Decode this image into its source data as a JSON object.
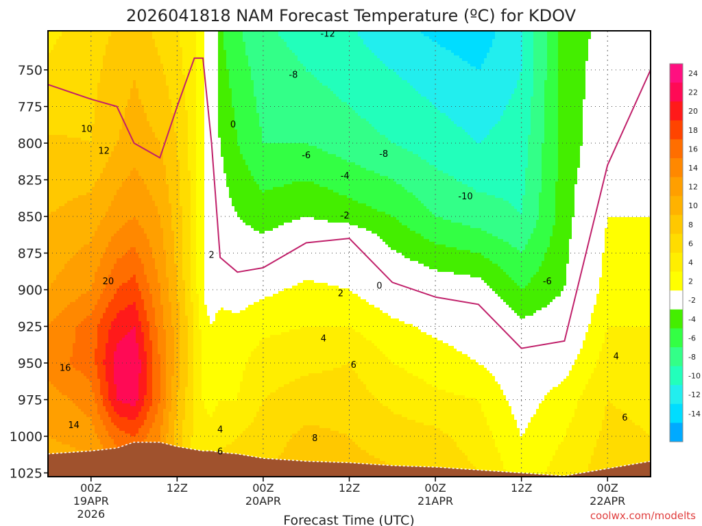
{
  "chart_data": {
    "type": "heatmap",
    "title": "2026041818 NAM Forecast Temperature (ºC) for KDOV",
    "xlabel": "Forecast Time (UTC)",
    "ylabel": "",
    "credit": "coolwx.com/modelts",
    "x_range_hours": [
      -5,
      65
    ],
    "ylim": [
      1030,
      712
    ],
    "y_ticks": [
      {
        "value": 750,
        "label": "750"
      },
      {
        "value": 775,
        "label": "775"
      },
      {
        "value": 800,
        "label": "800"
      },
      {
        "value": 825,
        "label": "825"
      },
      {
        "value": 850,
        "label": "850"
      },
      {
        "value": 875,
        "label": "875"
      },
      {
        "value": 900,
        "label": "900"
      },
      {
        "value": 925,
        "label": "925"
      },
      {
        "value": 950,
        "label": "950"
      },
      {
        "value": 975,
        "label": "975"
      },
      {
        "value": 1000,
        "label": "1000"
      },
      {
        "value": 1025,
        "label": "1025"
      }
    ],
    "x_ticks": [
      {
        "hour": 0,
        "lines": [
          "00Z",
          "19APR",
          "2026"
        ]
      },
      {
        "hour": 10,
        "lines": [
          "12Z"
        ]
      },
      {
        "hour": 20,
        "lines": [
          "00Z",
          "20APR"
        ]
      },
      {
        "hour": 30,
        "lines": [
          "12Z"
        ]
      },
      {
        "hour": 40,
        "lines": [
          "00Z",
          "21APR"
        ]
      },
      {
        "hour": 50,
        "lines": [
          "12Z"
        ]
      },
      {
        "hour": 60,
        "lines": [
          "00Z",
          "22APR"
        ]
      }
    ],
    "time_hours": [
      -5,
      0,
      3,
      5,
      8,
      10,
      12,
      13,
      14,
      15,
      17,
      20,
      25,
      30,
      35,
      40,
      45,
      50,
      55,
      60,
      65
    ],
    "freezing_level_hpa": [
      760,
      770,
      775,
      800,
      810,
      775,
      742,
      742,
      800,
      878,
      888,
      885,
      868,
      865,
      895,
      905,
      910,
      940,
      935,
      815,
      750
    ],
    "profiles": [
      {
        "name": "-5h",
        "levels": [
          712,
          780,
          850,
          900,
          925,
          950,
          975,
          1000,
          1015
        ],
        "values": [
          5,
          7.5,
          10,
          12,
          14,
          15,
          13,
          12,
          11
        ]
      },
      {
        "name": "0h",
        "levels": [
          712,
          800,
          850,
          900,
          925,
          950,
          975,
          1000,
          1012
        ],
        "values": [
          7,
          8,
          11,
          14,
          17,
          17,
          15,
          13,
          12
        ]
      },
      {
        "name": "3h",
        "levels": [
          712,
          800,
          850,
          900,
          925,
          950,
          975,
          1000,
          1008
        ],
        "values": [
          8,
          10,
          13,
          18,
          21,
          23,
          22,
          17,
          16
        ]
      },
      {
        "name": "5h",
        "levels": [
          712,
          800,
          850,
          900,
          925,
          950,
          975,
          1000,
          1005
        ],
        "values": [
          9,
          11,
          14,
          19,
          22,
          24,
          23,
          18,
          17
        ]
      },
      {
        "name": "8h",
        "levels": [
          712,
          800,
          850,
          900,
          925,
          950,
          975,
          1000,
          1005
        ],
        "values": [
          7,
          10,
          12,
          14,
          15,
          16,
          16,
          14,
          14
        ]
      },
      {
        "name": "10h",
        "levels": [
          712,
          800,
          850,
          900,
          925,
          950,
          975,
          1000,
          1007
        ],
        "values": [
          6,
          8,
          9,
          10,
          11,
          11,
          10,
          9,
          9
        ]
      },
      {
        "name": "12h",
        "levels": [
          712,
          800,
          850,
          900,
          925,
          950,
          975,
          1000,
          1009
        ],
        "values": [
          4,
          5,
          5,
          5,
          6,
          6,
          6,
          5.5,
          5.5
        ]
      },
      {
        "name": "13h",
        "levels": [
          712,
          780,
          850,
          900,
          925,
          950,
          975,
          1000,
          1009
        ],
        "values": [
          2,
          2,
          2,
          2,
          3,
          3.5,
          4,
          4.5,
          5
        ]
      },
      {
        "name": "14h",
        "levels": [
          712,
          742,
          800,
          850,
          900,
          925,
          950,
          975,
          1000,
          1010
        ],
        "values": [
          1,
          0,
          -1,
          -1,
          0.5,
          2,
          3,
          3.5,
          4.5,
          5
        ]
      },
      {
        "name": "15h",
        "levels": [
          712,
          760,
          800,
          850,
          878,
          900,
          925,
          950,
          975,
          1000,
          1011
        ],
        "values": [
          -4,
          -3,
          -2,
          -1,
          0,
          1,
          3,
          3.5,
          4,
          5.5,
          6
        ]
      },
      {
        "name": "17h",
        "levels": [
          712,
          750,
          800,
          850,
          888,
          900,
          925,
          950,
          975,
          1000,
          1012
        ],
        "values": [
          -6,
          -5,
          -4,
          -2,
          0,
          1,
          2.5,
          3.5,
          4,
          6,
          6.5
        ]
      },
      {
        "name": "20h",
        "levels": [
          712,
          750,
          800,
          850,
          885,
          900,
          925,
          950,
          975,
          1000,
          1015
        ],
        "values": [
          -8,
          -7,
          -6,
          -3,
          0,
          1.5,
          3.5,
          5,
          6,
          7,
          7.5
        ]
      },
      {
        "name": "25h",
        "levels": [
          712,
          750,
          800,
          850,
          868,
          900,
          925,
          950,
          975,
          1000,
          1017
        ],
        "values": [
          -9,
          -8,
          -6,
          -2,
          0,
          2.5,
          4,
          5.5,
          7,
          8.5,
          9
        ]
      },
      {
        "name": "30h",
        "levels": [
          712,
          750,
          800,
          850,
          865,
          900,
          925,
          950,
          975,
          1000,
          1018
        ],
        "values": [
          -10,
          -9,
          -7,
          -3,
          0,
          2,
          4,
          6,
          7,
          8,
          8.5
        ]
      },
      {
        "name": "35h",
        "levels": [
          712,
          750,
          800,
          850,
          895,
          925,
          950,
          975,
          1000,
          1020
        ],
        "values": [
          -12,
          -10,
          -8,
          -4,
          0,
          2.5,
          4,
          5.5,
          7,
          8
        ]
      },
      {
        "name": "40h",
        "levels": [
          712,
          750,
          800,
          850,
          905,
          925,
          950,
          975,
          1000,
          1022
        ],
        "values": [
          -13,
          -11,
          -9,
          -6,
          0,
          1.5,
          3,
          4.5,
          6.5,
          7.5
        ]
      },
      {
        "name": "45h",
        "levels": [
          712,
          750,
          800,
          850,
          900,
          910,
          950,
          975,
          1000,
          1025
        ],
        "values": [
          -14,
          -12,
          -10,
          -7,
          -1,
          0,
          2,
          4,
          5,
          6
        ]
      },
      {
        "name": "50h",
        "levels": [
          712,
          750,
          800,
          850,
          900,
          940,
          975,
          1000,
          1030
        ],
        "values": [
          -10,
          -10,
          -9,
          -8,
          -4,
          0,
          1,
          2,
          3
        ]
      },
      {
        "name": "55h",
        "levels": [
          712,
          750,
          800,
          850,
          900,
          935,
          975,
          1000,
          1027
        ],
        "values": [
          -3,
          -3,
          -3,
          -3,
          -2,
          0,
          3,
          4,
          5
        ]
      },
      {
        "name": "60h",
        "levels": [
          712,
          750,
          800,
          815,
          850,
          900,
          925,
          950,
          975,
          1000,
          1022
        ],
        "values": [
          -1.5,
          -1,
          -0.5,
          0,
          2,
          3,
          4,
          5,
          6,
          6.5,
          7
        ]
      },
      {
        "name": "65h",
        "levels": [
          712,
          750,
          800,
          850,
          900,
          950,
          975,
          1000,
          1018
        ],
        "values": [
          0,
          0,
          1,
          2,
          3,
          5,
          5.5,
          6,
          6.5
        ]
      }
    ],
    "ground_hpa": [
      1012,
      1010,
      1008,
      1004,
      1004,
      1007,
      1009,
      1010,
      1010,
      1011,
      1012,
      1015,
      1017,
      1018,
      1020,
      1021,
      1023,
      1025,
      1027,
      1022,
      1017
    ],
    "contour_labels": [
      {
        "text": "-12",
        "hour": 27.5,
        "hpa": 725
      },
      {
        "text": "-8",
        "hour": 23.5,
        "hpa": 753
      },
      {
        "text": "0",
        "hour": 16.5,
        "hpa": 787
      },
      {
        "text": "10",
        "hour": -0.5,
        "hpa": 790
      },
      {
        "text": "-6",
        "hour": 25,
        "hpa": 808
      },
      {
        "text": "-8",
        "hour": 34,
        "hpa": 807
      },
      {
        "text": "12",
        "hour": 1.5,
        "hpa": 805
      },
      {
        "text": "-4",
        "hour": 29.5,
        "hpa": 822
      },
      {
        "text": "-10",
        "hour": 43.5,
        "hpa": 836
      },
      {
        "text": "-2",
        "hour": 29.5,
        "hpa": 849
      },
      {
        "text": "2",
        "hour": 14,
        "hpa": 876
      },
      {
        "text": "-6",
        "hour": 53,
        "hpa": 894
      },
      {
        "text": "20",
        "hour": 2,
        "hpa": 894
      },
      {
        "text": "0",
        "hour": 33.5,
        "hpa": 897
      },
      {
        "text": "2",
        "hour": 29,
        "hpa": 902
      },
      {
        "text": "4",
        "hour": 27,
        "hpa": 933
      },
      {
        "text": "6",
        "hour": 30.5,
        "hpa": 951
      },
      {
        "text": "4",
        "hour": 61,
        "hpa": 945
      },
      {
        "text": "16",
        "hour": -3,
        "hpa": 953
      },
      {
        "text": "6",
        "hour": 62,
        "hpa": 987
      },
      {
        "text": "14",
        "hour": -2,
        "hpa": 992
      },
      {
        "text": "4",
        "hour": 15,
        "hpa": 995
      },
      {
        "text": "8",
        "hour": 26,
        "hpa": 1001
      },
      {
        "text": "6",
        "hour": 15,
        "hpa": 1010
      }
    ],
    "color_levels": [
      {
        "label": "24",
        "color": "#ff1080"
      },
      {
        "label": "22",
        "color": "#ff0a55"
      },
      {
        "label": "20",
        "color": "#ff1a1a"
      },
      {
        "label": "18",
        "color": "#ff4400"
      },
      {
        "label": "16",
        "color": "#ff6e00"
      },
      {
        "label": "14",
        "color": "#ff8800"
      },
      {
        "label": "12",
        "color": "#ff9f00"
      },
      {
        "label": "10",
        "color": "#ffb200"
      },
      {
        "label": "8",
        "color": "#ffc800"
      },
      {
        "label": "6",
        "color": "#ffdc00"
      },
      {
        "label": "4",
        "color": "#ffee00"
      },
      {
        "label": "2",
        "color": "#ffff00"
      },
      {
        "label": "-2",
        "color": "#ffffff"
      },
      {
        "label": "-4",
        "color": "#44ee00"
      },
      {
        "label": "-6",
        "color": "#33ff44"
      },
      {
        "label": "-8",
        "color": "#33ff88"
      },
      {
        "label": "-10",
        "color": "#22ffbb"
      },
      {
        "label": "-12",
        "color": "#22eeee"
      },
      {
        "label": "-14",
        "color": "#00ddff"
      },
      {
        "label": "",
        "color": "#00aaff"
      }
    ]
  },
  "colors": {
    "freezing_line": "#c0206a",
    "ground": "#a0522d",
    "credit": "#e03c3c"
  }
}
